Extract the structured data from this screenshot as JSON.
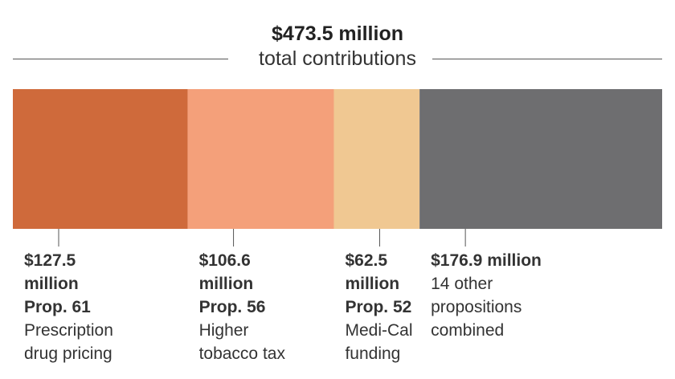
{
  "header": {
    "total": "$473.5 million",
    "subtitle": "total contributions"
  },
  "chart_data": {
    "type": "bar",
    "orientation": "stacked-horizontal",
    "title": "$473.5 million",
    "subtitle": "total contributions",
    "total": 473.5,
    "unit": "million",
    "segments": [
      {
        "value": 127.5,
        "value_label": "$127.5",
        "unit_label": "million",
        "prop": "Prop. 61",
        "desc": [
          "Prescription",
          "drug pricing"
        ],
        "color": "#cf6a3b"
      },
      {
        "value": 106.6,
        "value_label": "$106.6",
        "unit_label": "million",
        "prop": "Prop. 56",
        "desc": [
          "Higher",
          "tobacco tax"
        ],
        "color": "#f4a07a"
      },
      {
        "value": 62.5,
        "value_label": "$62.5",
        "unit_label": "million",
        "prop": "Prop. 52",
        "desc": [
          "Medi-Cal",
          "funding"
        ],
        "color": "#f0c892"
      },
      {
        "value": 176.9,
        "value_label": "$176.9 million",
        "unit_label": "",
        "prop": "",
        "desc": [
          "14 other",
          "propositions",
          "combined"
        ],
        "color": "#6e6e70"
      }
    ]
  }
}
